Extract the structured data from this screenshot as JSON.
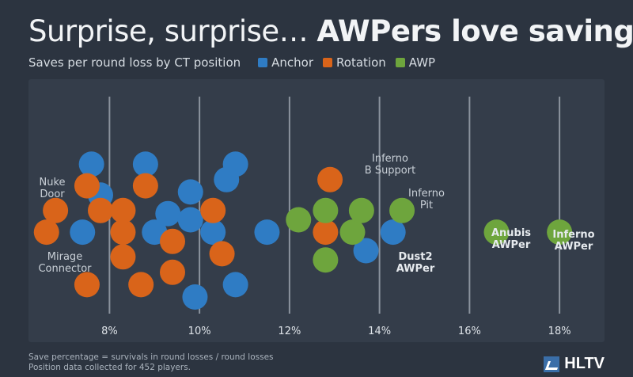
{
  "title_regular": "Surprise, surprise…",
  "title_bold": "AWPers love saving",
  "subtitle": "Saves per round loss by CT position",
  "footnote_line1": "Save percentage = survivals in round losses / round losses",
  "footnote_line2": "Position data collected for 452 players.",
  "brand": "HLTV",
  "chart_data": {
    "type": "scatter",
    "xlim": [
      6.2,
      19.0
    ],
    "ticks": [
      8,
      10,
      12,
      14,
      16,
      18
    ],
    "tick_labels": [
      "8%",
      "10%",
      "12%",
      "14%",
      "16%",
      "18%"
    ],
    "grid": true,
    "legend_position": "top",
    "colors": {
      "Anchor": "#2f7cc4",
      "Rotation": "#d9641a",
      "AWP": "#6ea53d"
    },
    "series": [
      {
        "name": "Anchor",
        "points": [
          [
            7.8,
            0.66
          ],
          [
            7.4,
            0.42
          ],
          [
            7.6,
            0.86
          ],
          [
            8.8,
            0.86
          ],
          [
            9.0,
            0.42
          ],
          [
            9.3,
            0.54
          ],
          [
            9.8,
            0.5
          ],
          [
            9.8,
            0.68
          ],
          [
            10.3,
            0.42
          ],
          [
            10.6,
            0.76
          ],
          [
            10.8,
            0.86
          ],
          [
            9.9,
            0.0
          ],
          [
            10.8,
            0.08
          ],
          [
            11.5,
            0.42
          ],
          [
            13.7,
            0.3
          ],
          [
            14.3,
            0.42
          ]
        ]
      },
      {
        "name": "Rotation",
        "points": [
          [
            6.6,
            0.42
          ],
          [
            6.8,
            0.56
          ],
          [
            7.5,
            0.08
          ],
          [
            7.8,
            0.56
          ],
          [
            7.5,
            0.72
          ],
          [
            8.3,
            0.26
          ],
          [
            8.3,
            0.42
          ],
          [
            8.3,
            0.56
          ],
          [
            8.7,
            0.08
          ],
          [
            8.8,
            0.72
          ],
          [
            9.4,
            0.16
          ],
          [
            9.4,
            0.36
          ],
          [
            10.3,
            0.56
          ],
          [
            10.5,
            0.28
          ],
          [
            12.8,
            0.42
          ],
          [
            12.9,
            0.76
          ]
        ]
      },
      {
        "name": "AWP",
        "points": [
          [
            12.2,
            0.5
          ],
          [
            12.8,
            0.24
          ],
          [
            12.8,
            0.56
          ],
          [
            13.4,
            0.42
          ],
          [
            13.6,
            0.56
          ],
          [
            14.5,
            0.56
          ],
          [
            16.6,
            0.42
          ],
          [
            18.0,
            0.42
          ]
        ]
      }
    ],
    "annotations": [
      {
        "lines": [
          "Nuke",
          "Door"
        ],
        "bold": false
      },
      {
        "lines": [
          "Mirage",
          "Connector"
        ],
        "bold": false
      },
      {
        "lines": [
          "Inferno",
          "B Support"
        ],
        "bold": false
      },
      {
        "lines": [
          "Inferno",
          "Pit"
        ],
        "bold": false
      },
      {
        "lines": [
          "Dust2",
          "AWPer"
        ],
        "bold": true
      },
      {
        "lines": [
          "Anubis",
          "AWPer"
        ],
        "bold": true
      },
      {
        "lines": [
          "Inferno",
          "AWPer"
        ],
        "bold": true
      }
    ]
  }
}
